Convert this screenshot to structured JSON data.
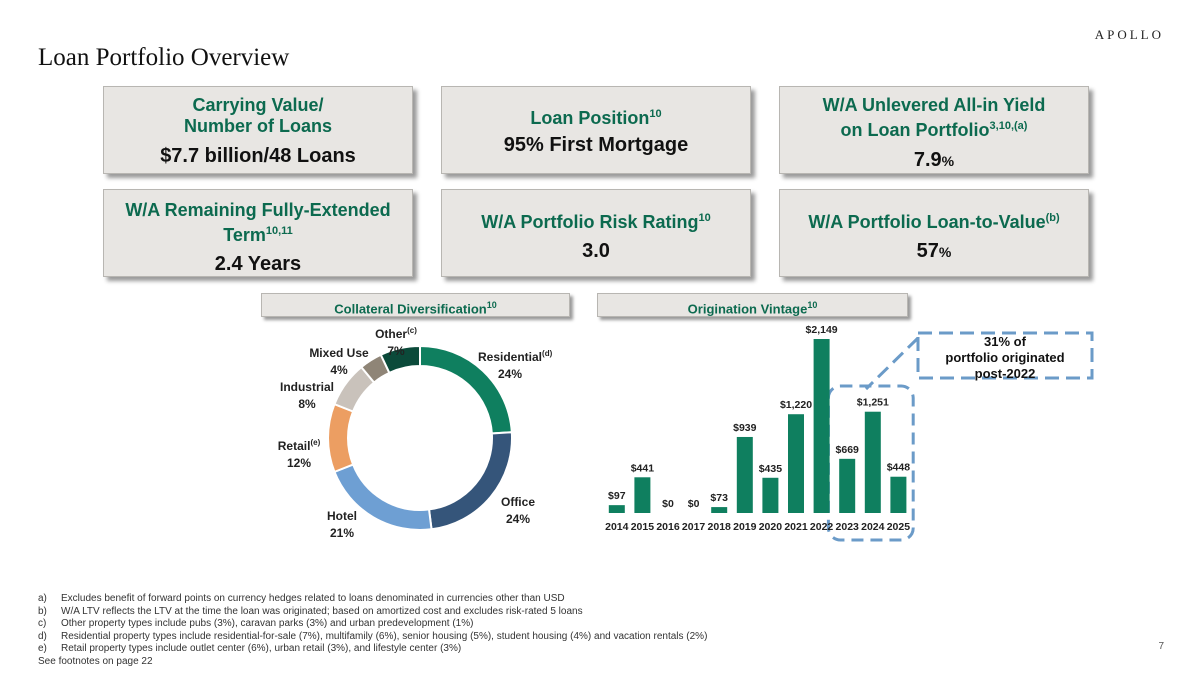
{
  "brand": "APOLLO",
  "page_title": "Loan Portfolio Overview",
  "metrics": {
    "carrying": {
      "label_1": "Carrying Value/",
      "label_2": "Number of Loans",
      "value": "$7.7 billion/48 Loans"
    },
    "position": {
      "label": "Loan Position",
      "sup": "10",
      "value": "95% First Mortgage"
    },
    "yield": {
      "label_1": "W/A Unlevered All-in Yield",
      "label_2": "on Loan Portfolio",
      "sup": "3,10,(a)",
      "value": "7.9",
      "unit": "%"
    },
    "term": {
      "label_1": "W/A Remaining Fully-Extended",
      "label_2": "Term",
      "sup": "10,11",
      "value": "2.4 Years"
    },
    "risk": {
      "label": "W/A Portfolio Risk Rating",
      "sup": "10",
      "value": "3.0"
    },
    "ltv": {
      "label": "W/A Portfolio Loan-to-Value",
      "sup": "(b)",
      "value": "57",
      "unit": "%"
    }
  },
  "collateral": {
    "title": "Collateral Diversification",
    "sup": "10"
  },
  "vintage": {
    "title": "Origination Vintage",
    "sup": "10"
  },
  "callout": {
    "line_1": "31% of",
    "line_2": "portfolio originated",
    "line_3": "post-2022"
  },
  "chart_data": [
    {
      "type": "pie",
      "title": "Collateral Diversification",
      "donut": true,
      "slices": [
        {
          "name": "Residential",
          "sup": "(d)",
          "pct_label": "24%",
          "value": 24,
          "color": "#0f7f5f"
        },
        {
          "name": "Office",
          "sup": "",
          "pct_label": "24%",
          "value": 24,
          "color": "#35557a"
        },
        {
          "name": "Hotel",
          "sup": "",
          "pct_label": "21%",
          "value": 21,
          "color": "#6e9fd3"
        },
        {
          "name": "Retail",
          "sup": "(e)",
          "pct_label": "12%",
          "value": 12,
          "color": "#ec9e62"
        },
        {
          "name": "Industrial",
          "sup": "",
          "pct_label": "8%",
          "value": 8,
          "color": "#c9c2bb"
        },
        {
          "name": "Mixed Use",
          "sup": "",
          "pct_label": "4%",
          "value": 4,
          "color": "#8f8577"
        },
        {
          "name": "Other",
          "sup": "(c)",
          "pct_label": "7%",
          "value": 7,
          "color": "#0b4a3a"
        }
      ]
    },
    {
      "type": "bar",
      "title": "Origination Vintage",
      "categories": [
        "2014",
        "2015",
        "2016",
        "2017",
        "2018",
        "2019",
        "2020",
        "2021",
        "2022",
        "2023",
        "2024",
        "2025"
      ],
      "values": [
        97,
        441,
        0,
        0,
        73,
        939,
        435,
        1220,
        2149,
        669,
        1251,
        448
      ],
      "value_labels": [
        "$97",
        "$441",
        "$0",
        "$0",
        "$73",
        "$939",
        "$435",
        "$1,220",
        "$2,149",
        "$669",
        "$1,251",
        "$448"
      ],
      "color": "#0f7f5f",
      "ylim": [
        0,
        2149
      ]
    }
  ],
  "footnotes": [
    {
      "key": "a)",
      "text": "Excludes benefit of forward points on currency hedges related to loans denominated in currencies other than USD"
    },
    {
      "key": "b)",
      "text": "W/A LTV reflects the LTV at the time the loan was originated; based on amortized cost and excludes risk-rated 5 loans"
    },
    {
      "key": "c)",
      "text": "Other property types include pubs (3%), caravan parks (3%) and urban predevelopment (1%)"
    },
    {
      "key": "d)",
      "text": "Residential property types include residential-for-sale (7%), multifamily (6%), senior housing (5%), student housing (4%) and vacation rentals (2%)"
    },
    {
      "key": "e)",
      "text": "Retail property types include outlet center (6%), urban retail (3%), and lifestyle center (3%)"
    }
  ],
  "see_footnotes": "See footnotes on page 22",
  "page_number": "7"
}
